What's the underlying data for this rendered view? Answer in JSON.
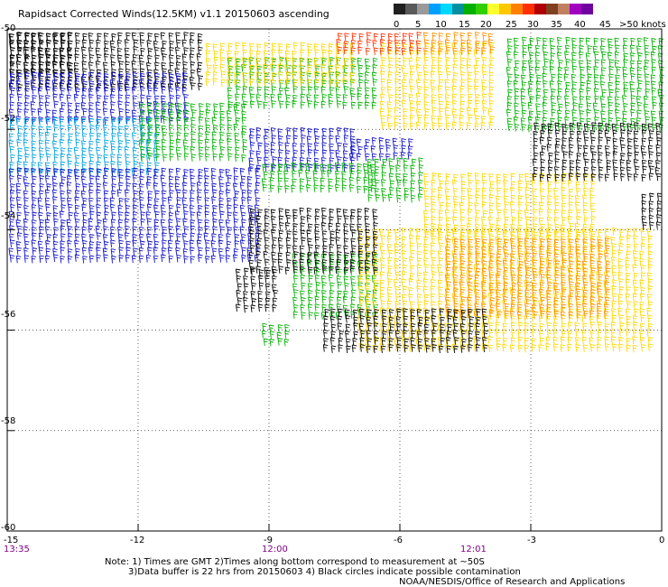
{
  "title": "Rapidsact Corrected Winds(12.5KM) v1.1 20150603 ascending",
  "legend": {
    "colors": [
      "#202020",
      "#5a5a5a",
      "#9a9a9a",
      "#00a0ff",
      "#00d8ff",
      "#0090a0",
      "#00b000",
      "#30d000",
      "#ffff30",
      "#ffc800",
      "#ff8000",
      "#ff3000",
      "#b00000",
      "#804020",
      "#c08060",
      "#a000c0",
      "#7000a0"
    ],
    "labels": [
      "0",
      "5",
      "10",
      "15",
      "20",
      "25",
      "30",
      "35",
      "40",
      "45",
      ">50 knots"
    ]
  },
  "map": {
    "lon_range": [
      -15,
      0
    ],
    "lat_range": [
      -50,
      -60
    ],
    "x_ticks": [
      "-15",
      "-12",
      "-9",
      "-6",
      "-3",
      "0"
    ],
    "y_ticks": [
      "-50",
      "-52",
      "-54",
      "-56",
      "-58",
      "-60"
    ],
    "times": [
      "13:35",
      "12:00",
      "12:01"
    ],
    "wind_regions": [
      {
        "color": "#000000",
        "lon": [
          -15,
          -10.5
        ],
        "lat": [
          -50.1,
          -51.2
        ]
      },
      {
        "color": "#000000",
        "lon": [
          -15,
          -13.5
        ],
        "lat": [
          -50.1,
          -51.0
        ]
      },
      {
        "color": "#1010c8",
        "lon": [
          -15,
          -10.8
        ],
        "lat": [
          -50.9,
          -51.9
        ]
      },
      {
        "color": "#00a0e0",
        "lon": [
          -15,
          -11.5
        ],
        "lat": [
          -51.8,
          -52.9
        ]
      },
      {
        "color": "#1010c8",
        "lon": [
          -15,
          -9.2
        ],
        "lat": [
          -52.8,
          -54.7
        ]
      },
      {
        "color": "#1010c8",
        "lon": [
          -9.5,
          -7.0
        ],
        "lat": [
          -52.0,
          -52.8
        ]
      },
      {
        "color": "#1010c8",
        "lon": [
          -7.2,
          -5.8
        ],
        "lat": [
          -52.2,
          -52.7
        ]
      },
      {
        "color": "#00b000",
        "lon": [
          -12.0,
          -9.5
        ],
        "lat": [
          -51.5,
          -52.6
        ]
      },
      {
        "color": "#00b000",
        "lon": [
          -10.0,
          -6.5
        ],
        "lat": [
          -50.6,
          -51.6
        ]
      },
      {
        "color": "#00b000",
        "lon": [
          -9.2,
          -6.5
        ],
        "lat": [
          -52.7,
          -53.3
        ]
      },
      {
        "color": "#00b000",
        "lon": [
          -6.8,
          -5.5
        ],
        "lat": [
          -52.6,
          -53.4
        ]
      },
      {
        "color": "#00b000",
        "lon": [
          -3.6,
          0
        ],
        "lat": [
          -50.2,
          -52.0
        ]
      },
      {
        "color": "#00b000",
        "lon": [
          -8.5,
          -6.5
        ],
        "lat": [
          -54.5,
          -55.8
        ]
      },
      {
        "color": "#00b000",
        "lon": [
          -9.2,
          -8.5
        ],
        "lat": [
          -55.9,
          -56.3
        ]
      },
      {
        "color": "#ffd800",
        "lon": [
          -10.5,
          -7.0
        ],
        "lat": [
          -50.3,
          -51.1
        ]
      },
      {
        "color": "#ffd800",
        "lon": [
          -6.5,
          -3.8
        ],
        "lat": [
          -50.3,
          -52.0
        ]
      },
      {
        "color": "#ffd800",
        "lon": [
          -5.5,
          -1.5
        ],
        "lat": [
          -52.9,
          -54.2
        ]
      },
      {
        "color": "#ffd800",
        "lon": [
          -7.0,
          -0.2
        ],
        "lat": [
          -54.0,
          -56.4
        ]
      },
      {
        "color": "#ff9000",
        "lon": [
          -5.0,
          -1.2
        ],
        "lat": [
          -54.2,
          -55.8
        ]
      },
      {
        "color": "#ff3000",
        "lon": [
          -7.5,
          -5.5
        ],
        "lat": [
          -50.1,
          -50.5
        ]
      },
      {
        "color": "#ff9000",
        "lon": [
          -5.5,
          -3.9
        ],
        "lat": [
          -50.1,
          -50.5
        ]
      },
      {
        "color": "#000000",
        "lon": [
          -3.0,
          0
        ],
        "lat": [
          -51.9,
          -53.1
        ]
      },
      {
        "color": "#000000",
        "lon": [
          -9.5,
          -6.5
        ],
        "lat": [
          -53.6,
          -54.9
        ]
      },
      {
        "color": "#000000",
        "lon": [
          -9.8,
          -8.8
        ],
        "lat": [
          -54.8,
          -55.6
        ]
      },
      {
        "color": "#000000",
        "lon": [
          -7.8,
          -4.0
        ],
        "lat": [
          -55.6,
          -56.5
        ]
      },
      {
        "color": "#000000",
        "lon": [
          -0.5,
          0
        ],
        "lat": [
          -53.3,
          -54.0
        ]
      }
    ]
  },
  "notes": {
    "line1": "Note: 1) Times are GMT 2)Times along bottom correspond to measurement at ~50S",
    "line2": "3)Data buffer is 22 hrs from 20150603 4) Black circles indicate possible contamination",
    "credit": "NOAA/NESDIS/Office of Research and Applications"
  }
}
